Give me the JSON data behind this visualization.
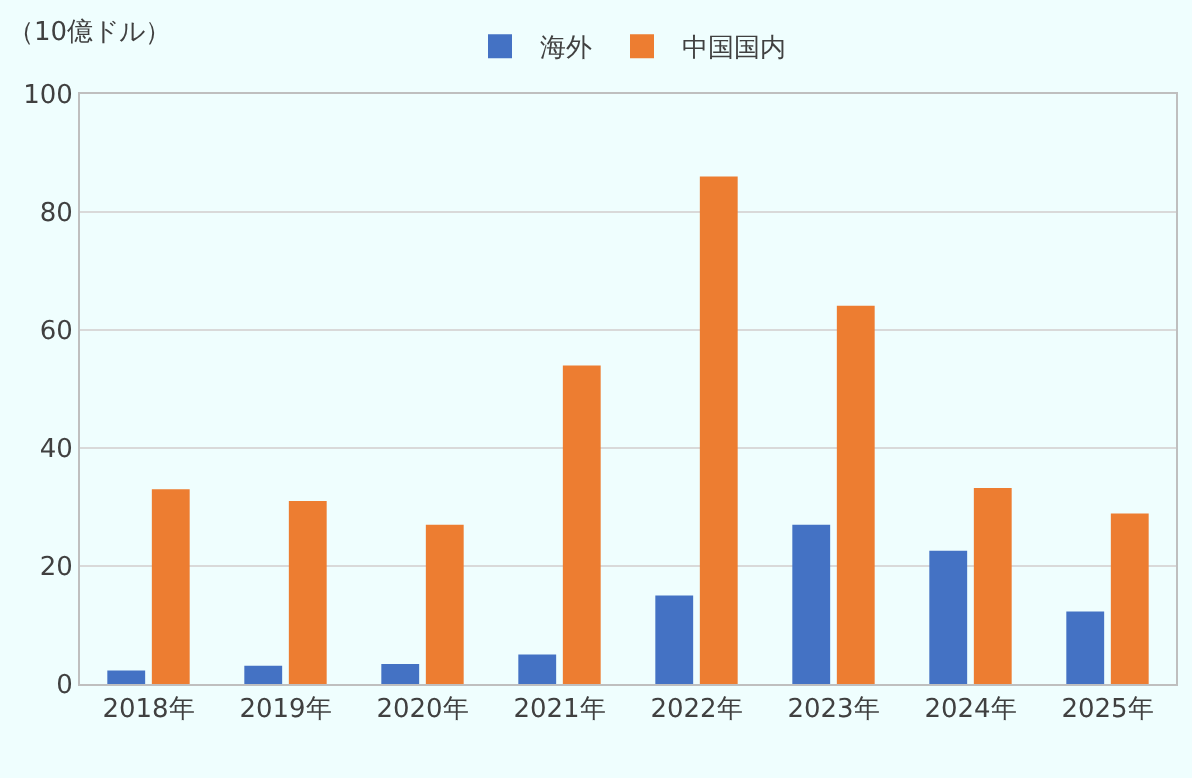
{
  "chart_data": {
    "type": "bar",
    "ylabel": "（10億ドル）",
    "categories": [
      "2018年",
      "2019年",
      "2020年",
      "2021年",
      "2022年",
      "2023年",
      "2024年",
      "2025年"
    ],
    "series": [
      {
        "name": "海外",
        "color": "#4472c4",
        "values": [
          2.3,
          3.1,
          3.4,
          5.0,
          15.0,
          27.0,
          22.6,
          12.3
        ]
      },
      {
        "name": "中国国内",
        "color": "#ed7d31",
        "values": [
          33.0,
          31.0,
          27.0,
          54.0,
          86.0,
          64.1,
          33.2,
          28.9
        ]
      }
    ],
    "ylim": [
      0,
      100
    ],
    "yticks": [
      0,
      20,
      40,
      60,
      80,
      100
    ],
    "grid": "y",
    "legend": "top"
  }
}
